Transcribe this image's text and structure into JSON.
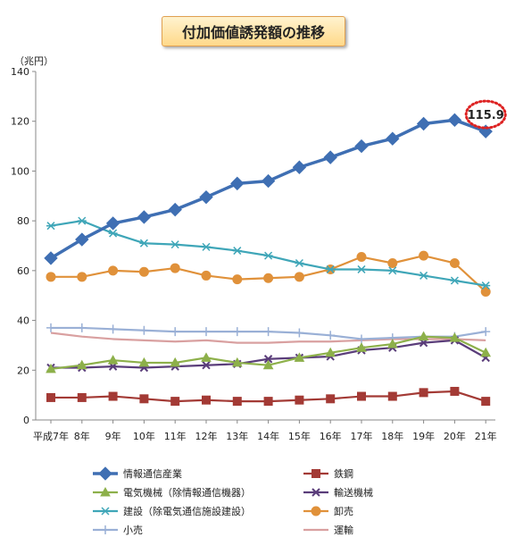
{
  "chart_data": {
    "type": "line",
    "title": "付加価値誘発額の推移",
    "ylabel": "（兆円）",
    "ylim": [
      0,
      140
    ],
    "yticks": [
      "0",
      "20",
      "40",
      "60",
      "80",
      "100",
      "120",
      "140"
    ],
    "categories": [
      "平成7年",
      "8年",
      "9年",
      "10年",
      "11年",
      "12年",
      "13年",
      "14年",
      "15年",
      "16年",
      "17年",
      "18年",
      "19年",
      "20年",
      "21年"
    ],
    "grid": false,
    "legend_position": "bottom",
    "annotation": {
      "text": "115.9",
      "series": "情報通信産業",
      "category": "21年"
    },
    "series": [
      {
        "name": "情報通信産業",
        "color": "#3f6fb3",
        "marker": "diamond",
        "values": [
          65,
          72.5,
          79,
          81.5,
          84.5,
          89.5,
          95,
          96,
          101.5,
          105.5,
          110,
          113,
          119,
          120.5,
          115.9
        ]
      },
      {
        "name": "鉄鋼",
        "color": "#a33a35",
        "marker": "square",
        "values": [
          9,
          9,
          9.5,
          8.5,
          7.5,
          8,
          7.5,
          7.5,
          8,
          8.5,
          9.5,
          9.5,
          11,
          11.5,
          7.5
        ]
      },
      {
        "name": "電気機械（除情報通信機器）",
        "color": "#8db04a",
        "marker": "triangle",
        "values": [
          20.5,
          22,
          24,
          23,
          23,
          25,
          23,
          22,
          25,
          27,
          29,
          30.5,
          33.5,
          33,
          27
        ]
      },
      {
        "name": "輸送機械",
        "color": "#5a3d7a",
        "marker": "x",
        "values": [
          21,
          21,
          21.5,
          21,
          21.5,
          22,
          22.5,
          24.5,
          25,
          25.5,
          28,
          29,
          31,
          32,
          25
        ]
      },
      {
        "name": "建設（除電気通信施設建設）",
        "color": "#3fa6b8",
        "marker": "star",
        "values": [
          78,
          80,
          75,
          71,
          70.5,
          69.5,
          68,
          66,
          63,
          60.5,
          60.5,
          60,
          58,
          56,
          54
        ]
      },
      {
        "name": "卸売",
        "color": "#e0913a",
        "marker": "circle",
        "values": [
          57.5,
          57.5,
          60,
          59.5,
          61,
          58,
          56.5,
          57,
          57.5,
          60.5,
          65.5,
          63,
          66,
          63,
          51.5
        ]
      },
      {
        "name": "小売",
        "color": "#9ab0d6",
        "marker": "plus",
        "values": [
          37,
          37,
          36.5,
          36,
          35.5,
          35.5,
          35.5,
          35.5,
          35,
          34,
          32.5,
          33,
          33.5,
          33.5,
          35.5
        ]
      },
      {
        "name": "運輸",
        "color": "#d9a0a0",
        "marker": "none",
        "values": [
          35,
          33.5,
          32.5,
          32,
          31.5,
          32,
          31,
          31,
          31.5,
          31.5,
          32,
          32.5,
          32.5,
          32.5,
          32
        ]
      }
    ]
  }
}
